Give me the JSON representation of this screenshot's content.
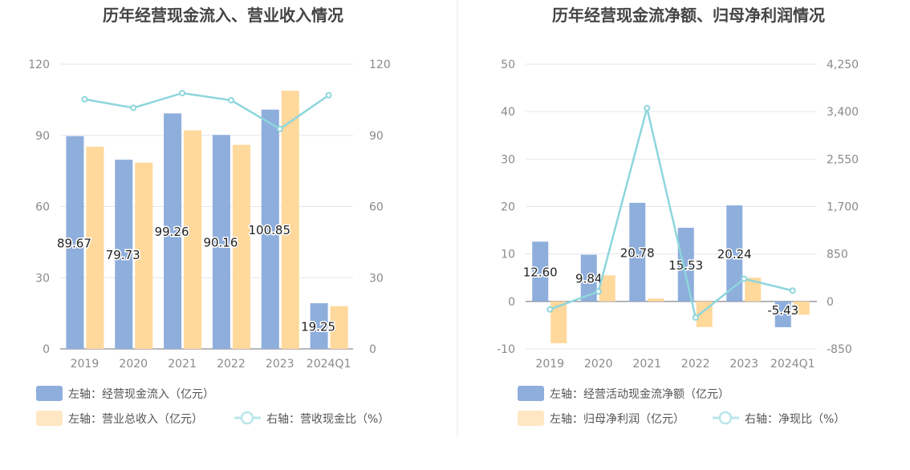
{
  "colors": {
    "bar_primary": "#8eaedc",
    "bar_secondary": "#ffd89b",
    "line": "#8dd6dc",
    "grid": "#e3e6ee",
    "axis": "#8a8a8a",
    "title": "#444444",
    "divider": "#e8e8e8"
  },
  "chart_data": [
    {
      "type": "bar",
      "title": "历年经营现金流入、营业收入情况",
      "categories": [
        "2019",
        "2020",
        "2021",
        "2022",
        "2023",
        "2024Q1"
      ],
      "left_ticks": [
        "0",
        "30",
        "60",
        "90",
        "120"
      ],
      "right_ticks": [
        "0",
        "30",
        "60",
        "90",
        "120"
      ],
      "ylim": [
        0,
        120
      ],
      "y2lim": [
        0,
        120
      ],
      "grid": true,
      "legend_position": "bottom-left",
      "series": [
        {
          "name": "左轴：经营现金流入（亿元）",
          "kind": "bar",
          "axis": "left",
          "values": [
            89.67,
            79.73,
            99.26,
            90.16,
            100.85,
            19.25
          ],
          "labels": [
            "89.67",
            "79.73",
            "99.26",
            "90.16",
            "100.85",
            "19.25"
          ]
        },
        {
          "name": "左轴：营业总收入（亿元）",
          "kind": "bar",
          "axis": "left",
          "values": [
            85.2,
            78.5,
            92.1,
            86.0,
            108.8,
            18.0
          ]
        },
        {
          "name": "右轴：营收现金比（%）",
          "kind": "line",
          "axis": "right",
          "values": [
            105.2,
            101.6,
            107.8,
            104.8,
            92.7,
            106.9
          ]
        }
      ]
    },
    {
      "type": "bar",
      "title": "历年经营现金流净额、归母净利润情况",
      "categories": [
        "2019",
        "2020",
        "2021",
        "2022",
        "2023",
        "2024Q1"
      ],
      "left_ticks": [
        "-10",
        "0",
        "10",
        "20",
        "30",
        "40",
        "50"
      ],
      "right_ticks": [
        "-850",
        "0",
        "850",
        "1,700",
        "2,550",
        "3,400",
        "4,250"
      ],
      "ylim": [
        -10,
        50
      ],
      "y2lim": [
        -850,
        4250
      ],
      "grid": true,
      "legend_position": "bottom-left",
      "series": [
        {
          "name": "左轴：经营活动现金流净额（亿元）",
          "kind": "bar",
          "axis": "left",
          "values": [
            12.6,
            9.84,
            20.78,
            15.53,
            20.24,
            -5.43
          ],
          "labels": [
            "12.60",
            "9.84",
            "20.78",
            "15.53",
            "20.24",
            "-5.43"
          ]
        },
        {
          "name": "左轴：归母净利润（亿元）",
          "kind": "bar",
          "axis": "left",
          "values": [
            -8.8,
            5.5,
            0.6,
            -5.4,
            5.0,
            -2.8
          ]
        },
        {
          "name": "右轴：净现比（%）",
          "kind": "line",
          "axis": "right",
          "values": [
            -143,
            179,
            3463,
            -288,
            405,
            194
          ]
        }
      ]
    }
  ]
}
